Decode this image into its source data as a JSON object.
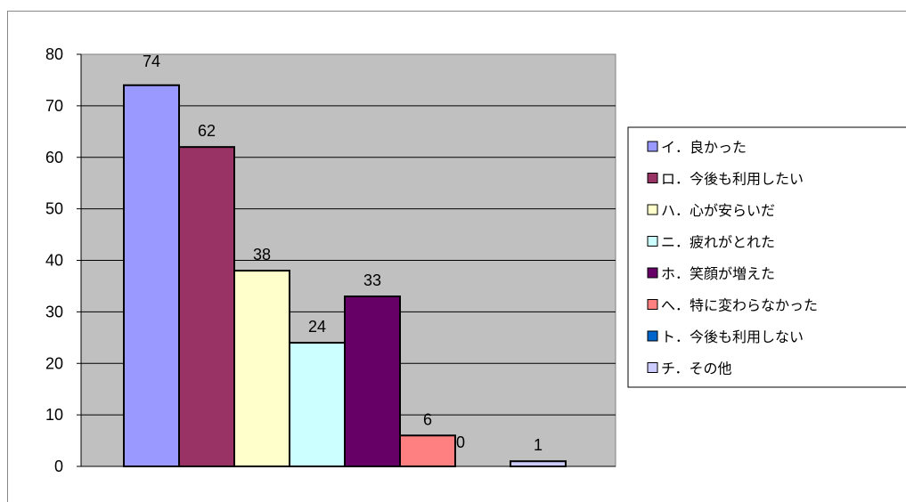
{
  "chart_data": {
    "type": "bar",
    "title": "",
    "xlabel": "",
    "ylabel": "",
    "ylim": [
      0,
      80
    ],
    "yticks": [
      0,
      10,
      20,
      30,
      40,
      50,
      60,
      70,
      80
    ],
    "grid": true,
    "legend_position": "right",
    "categories": [
      "イ．良かった",
      "ロ．今後も利用したい",
      "ハ．心が安らいだ",
      "ニ．疲れがとれた",
      "ホ．笑顔が増えた",
      "へ．特に変わらなかった",
      "ト．今後も利用しない",
      "チ．その他"
    ],
    "values": [
      74,
      62,
      38,
      24,
      33,
      6,
      0,
      1
    ],
    "colors": [
      "#9999FF",
      "#993366",
      "#FFFFCC",
      "#CCFFFF",
      "#660066",
      "#FF8080",
      "#0066CC",
      "#CCCCFF"
    ],
    "plot_background": "#C0C0C0"
  }
}
